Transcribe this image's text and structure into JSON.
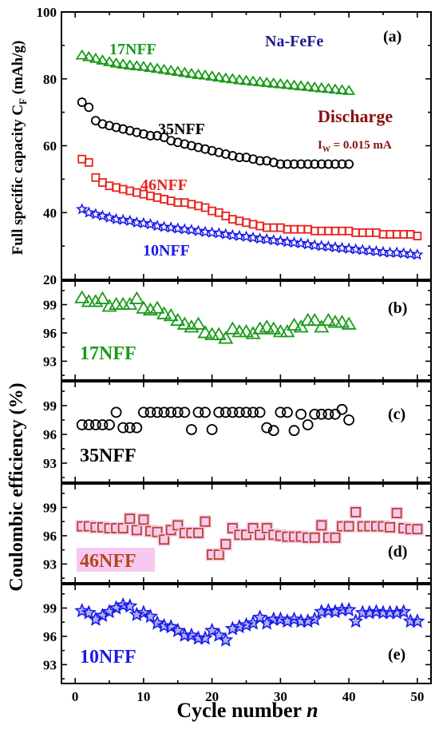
{
  "colors": {
    "17NFF": "#1a9a1a",
    "35NFF": "#000000",
    "46NFF": "#e8241c",
    "46NFF_d": "#b5461e",
    "10NFF": "#1a1ae8",
    "na_fefe": "#1c1c8c",
    "discharge": "#8b1010",
    "highlight": "#f7c9f0"
  },
  "texts": {
    "ylabel_a": "Full specific capacity C",
    "ylabel_a_sub": "F",
    "ylabel_a_unit": " (mAh/g)",
    "ylabel_ce": "Coulombic efficiency (%)",
    "xlabel": "Cycle number ",
    "xlabel_var": "n",
    "na_fefe": "Na-FeFe",
    "discharge": "Discharge",
    "current_I": "I",
    "current_sub": "W",
    "current_val": " = 0.015 mA",
    "label_17": "17NFF",
    "label_35": "35NFF",
    "label_46": "46NFF",
    "label_10": "10NFF",
    "panel_a": "(a)",
    "panel_b": "(b)",
    "panel_c": "(c)",
    "panel_d": "(d)",
    "panel_e": "(e)"
  },
  "chart_data": [
    {
      "panel": "(a)",
      "type": "scatter",
      "ylabel": "Full specific capacity CF (mAh/g)",
      "xlim": [
        -2,
        52
      ],
      "ylim": [
        20,
        100
      ],
      "yticks": [
        20,
        40,
        60,
        80,
        100
      ],
      "series": [
        {
          "name": "17NFF",
          "marker": "triangle",
          "x": [
            1,
            2,
            3,
            4,
            5,
            6,
            7,
            8,
            9,
            10,
            11,
            12,
            13,
            14,
            15,
            16,
            17,
            18,
            19,
            20,
            21,
            22,
            23,
            24,
            25,
            26,
            27,
            28,
            29,
            30,
            31,
            32,
            33,
            34,
            35,
            36,
            37,
            38,
            39,
            40
          ],
          "values": [
            87,
            86.5,
            86,
            85.5,
            85,
            84.6,
            84.3,
            84,
            83.8,
            83.6,
            83.3,
            83,
            82.7,
            82.4,
            82.1,
            81.8,
            81.5,
            81.2,
            81,
            80.7,
            80.4,
            80.1,
            79.9,
            79.6,
            79.4,
            79.2,
            79,
            78.8,
            78.6,
            78.4,
            78.2,
            78,
            77.8,
            77.6,
            77.4,
            77.2,
            77,
            76.8,
            76.6,
            76.4
          ]
        },
        {
          "name": "35NFF",
          "marker": "circle",
          "x": [
            1,
            2,
            3,
            4,
            5,
            6,
            7,
            8,
            9,
            10,
            11,
            12,
            13,
            14,
            15,
            16,
            17,
            18,
            19,
            20,
            21,
            22,
            23,
            24,
            25,
            26,
            27,
            28,
            29,
            30,
            31,
            32,
            33,
            34,
            35,
            36,
            37,
            38,
            39,
            40
          ],
          "values": [
            73,
            71.5,
            67.5,
            66.5,
            66,
            65.5,
            65,
            64.5,
            64,
            63.5,
            63,
            63,
            62.5,
            61.5,
            61,
            60.5,
            60,
            59.5,
            59,
            58.5,
            58,
            57.5,
            57,
            56.5,
            56.5,
            56,
            55.5,
            55.5,
            55,
            54.5,
            54.5,
            54.5,
            54.5,
            54.5,
            54.5,
            54.5,
            54.5,
            54.5,
            54.5,
            54.5
          ]
        },
        {
          "name": "46NFF",
          "marker": "square",
          "x": [
            1,
            2,
            3,
            4,
            5,
            6,
            7,
            8,
            9,
            10,
            11,
            12,
            13,
            14,
            15,
            16,
            17,
            18,
            19,
            20,
            21,
            22,
            23,
            24,
            25,
            26,
            27,
            28,
            29,
            30,
            31,
            32,
            33,
            34,
            35,
            36,
            37,
            38,
            39,
            40,
            41,
            42,
            43,
            44,
            45,
            46,
            47,
            48,
            49,
            50
          ],
          "values": [
            56,
            55,
            50.5,
            49,
            48,
            47.5,
            47,
            46.5,
            46,
            45.5,
            45,
            44.5,
            44,
            43.5,
            43,
            43,
            42.5,
            42,
            41.5,
            40.5,
            40,
            39,
            38,
            37.5,
            37,
            36.5,
            36,
            35.5,
            35.5,
            35.5,
            35,
            35,
            35,
            35,
            34.5,
            34.5,
            34.5,
            34.5,
            34.5,
            34.5,
            34,
            34,
            34,
            34,
            33.5,
            33.5,
            33.5,
            33.5,
            33.5,
            33
          ]
        },
        {
          "name": "10NFF",
          "marker": "star",
          "x": [
            1,
            2,
            3,
            4,
            5,
            6,
            7,
            8,
            9,
            10,
            11,
            12,
            13,
            14,
            15,
            16,
            17,
            18,
            19,
            20,
            21,
            22,
            23,
            24,
            25,
            26,
            27,
            28,
            29,
            30,
            31,
            32,
            33,
            34,
            35,
            36,
            37,
            38,
            39,
            40,
            41,
            42,
            43,
            44,
            45,
            46,
            47,
            48,
            49,
            50
          ],
          "values": [
            41,
            40,
            39.5,
            39,
            38.5,
            38,
            37.8,
            37.5,
            37,
            36.8,
            36.5,
            36,
            35.7,
            35.5,
            35.2,
            35,
            34.8,
            34.5,
            34.2,
            34,
            33.8,
            33.5,
            33.2,
            33,
            32.8,
            32.5,
            32.2,
            32,
            31.7,
            31.5,
            31.2,
            31,
            30.8,
            30.5,
            30.2,
            30,
            29.8,
            29.6,
            29.4,
            29.2,
            29,
            28.8,
            28.6,
            28.4,
            28.2,
            28,
            28,
            27.8,
            27.6,
            27.4
          ]
        }
      ]
    },
    {
      "panel": "(b)",
      "type": "scatter",
      "ylim": [
        91,
        101.5
      ],
      "yticks": [
        93,
        96,
        99
      ],
      "series": [
        {
          "name": "17NFF",
          "marker": "triangle",
          "x": [
            1,
            2,
            3,
            4,
            5,
            6,
            7,
            8,
            9,
            10,
            11,
            12,
            13,
            14,
            15,
            16,
            17,
            18,
            19,
            20,
            21,
            22,
            23,
            24,
            25,
            26,
            27,
            28,
            29,
            30,
            31,
            32,
            33,
            34,
            35,
            36,
            37,
            38,
            39,
            40
          ],
          "values": [
            99.7,
            99.3,
            99.3,
            99.6,
            98.8,
            99,
            99,
            99,
            99.6,
            98.6,
            98.4,
            98.6,
            98,
            97.8,
            97.3,
            96.9,
            96.6,
            96.9,
            96,
            95.8,
            95.8,
            95.4,
            96.4,
            96.1,
            96.1,
            95.9,
            96.4,
            96.6,
            96.4,
            96.1,
            96.1,
            96.8,
            96.6,
            97.3,
            97.3,
            96.6,
            97.3,
            97.1,
            97.1,
            96.9
          ]
        }
      ]
    },
    {
      "panel": "(c)",
      "type": "scatter",
      "ylim": [
        91,
        101.5
      ],
      "yticks": [
        93,
        96,
        99
      ],
      "series": [
        {
          "name": "35NFF",
          "marker": "circle",
          "x": [
            1,
            2,
            3,
            4,
            5,
            6,
            7,
            8,
            9,
            10,
            11,
            12,
            13,
            14,
            15,
            16,
            17,
            18,
            19,
            20,
            21,
            22,
            23,
            24,
            25,
            26,
            27,
            28,
            29,
            30,
            31,
            32,
            33,
            34,
            35,
            36,
            37,
            38,
            39,
            40
          ],
          "values": [
            97,
            97,
            97,
            97,
            97,
            98.3,
            96.7,
            96.7,
            96.7,
            98.3,
            98.3,
            98.3,
            98.3,
            98.3,
            98.3,
            98.3,
            96.5,
            98.3,
            98.3,
            96.5,
            98.3,
            98.3,
            98.3,
            98.3,
            98.3,
            98.3,
            98.3,
            96.7,
            96.4,
            98.3,
            98.3,
            96.4,
            98.1,
            97,
            98.1,
            98.1,
            98.1,
            98.1,
            98.6,
            97.5
          ]
        }
      ]
    },
    {
      "panel": "(d)",
      "type": "scatter",
      "ylim": [
        91,
        101.5
      ],
      "yticks": [
        93,
        96,
        99
      ],
      "series": [
        {
          "name": "46NFF",
          "marker": "square",
          "x": [
            1,
            2,
            3,
            4,
            5,
            6,
            7,
            8,
            9,
            10,
            11,
            12,
            13,
            14,
            15,
            16,
            17,
            18,
            19,
            20,
            21,
            22,
            23,
            24,
            25,
            26,
            27,
            28,
            29,
            30,
            31,
            32,
            33,
            34,
            35,
            36,
            37,
            38,
            39,
            40,
            41,
            42,
            43,
            44,
            45,
            46,
            47,
            48,
            49,
            50
          ],
          "values": [
            97,
            97,
            96.9,
            96.9,
            96.8,
            96.8,
            96.8,
            97.8,
            96.6,
            97.7,
            96.5,
            96.4,
            95.6,
            96.6,
            97.1,
            96.3,
            96.3,
            96.3,
            97.5,
            94,
            94,
            95.1,
            96.8,
            96.1,
            96.1,
            96.8,
            96.1,
            96.8,
            96.1,
            96,
            95.9,
            95.9,
            95.9,
            95.8,
            95.8,
            97.1,
            95.8,
            95.8,
            97,
            97,
            98.5,
            97,
            97,
            97,
            97,
            96.9,
            98.4,
            96.8,
            96.7,
            96.7
          ]
        }
      ]
    },
    {
      "panel": "(e)",
      "type": "scatter",
      "xlabel": "Cycle number n",
      "xlim": [
        -2,
        52
      ],
      "xticks": [
        0,
        10,
        20,
        30,
        40,
        50
      ],
      "ylim": [
        91,
        101.5
      ],
      "yticks": [
        93,
        96,
        99
      ],
      "series": [
        {
          "name": "10NFF",
          "marker": "star",
          "x": [
            1,
            2,
            3,
            4,
            5,
            6,
            7,
            8,
            9,
            10,
            11,
            12,
            13,
            14,
            15,
            16,
            17,
            18,
            19,
            20,
            21,
            22,
            23,
            24,
            25,
            26,
            27,
            28,
            29,
            30,
            31,
            32,
            33,
            34,
            35,
            36,
            37,
            38,
            39,
            40,
            41,
            42,
            43,
            44,
            45,
            46,
            47,
            48,
            49,
            50
          ],
          "values": [
            98.7,
            98.5,
            97.8,
            98.2,
            98.6,
            99,
            99.3,
            99.2,
            98.3,
            98.5,
            98.1,
            97.4,
            97.1,
            97,
            96.6,
            96.1,
            96.1,
            95.8,
            95.8,
            96.6,
            96.1,
            95.6,
            96.8,
            97,
            97.2,
            97.4,
            98,
            97.4,
            97.8,
            97.8,
            97.6,
            97.8,
            97.6,
            97.6,
            97.8,
            98.6,
            98.7,
            98.6,
            98.8,
            98.8,
            97.6,
            98.5,
            98.5,
            98.6,
            98.5,
            98.5,
            98.5,
            98.6,
            97.6,
            97.6
          ]
        }
      ]
    }
  ]
}
